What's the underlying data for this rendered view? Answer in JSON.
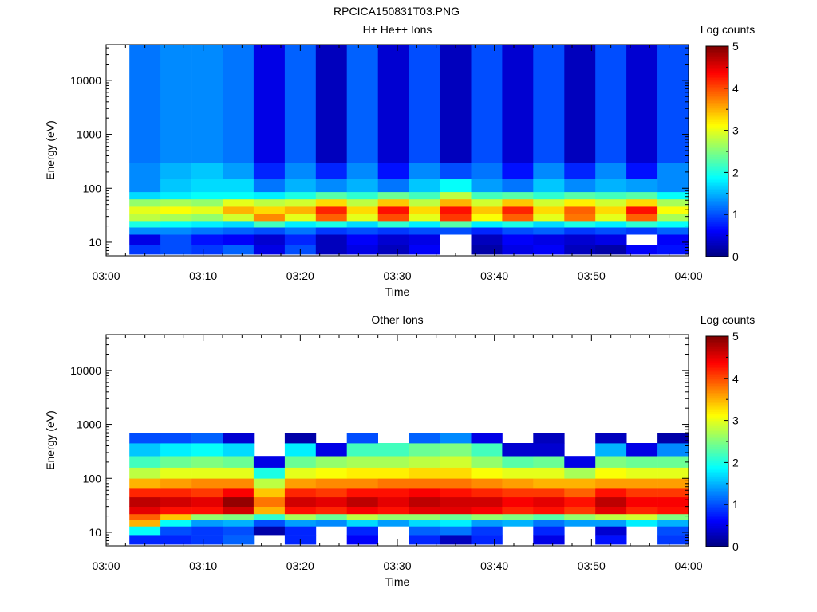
{
  "page_title": "RPCICA150831T03.PNG",
  "colors": {
    "white_gap": "#ffffff",
    "axis": "#000000"
  },
  "chart_data": [
    {
      "type": "heatmap",
      "title": "H+ He++ Ions",
      "xlabel": "Time",
      "ylabel": "Energy (eV)",
      "y_scale": "log",
      "x_ticks": [
        "03:00",
        "03:10",
        "03:20",
        "03:30",
        "03:40",
        "03:50",
        "04:00"
      ],
      "xlim_minutes": [
        0,
        60
      ],
      "y_ticks": [
        10,
        100,
        1000,
        10000
      ],
      "ylim": [
        5.6,
        46000
      ],
      "colorbar": {
        "label": "Log counts",
        "ticks": [
          0,
          1,
          2,
          3,
          4,
          5
        ],
        "range": [
          0,
          5
        ]
      },
      "grid": false,
      "time_bins_minutes": [
        2.4,
        5.6,
        8.8,
        12.0,
        15.2,
        18.4,
        21.6,
        24.8,
        28.0,
        31.2,
        34.4,
        37.6,
        40.8,
        44.0,
        47.2,
        50.4,
        53.6,
        56.8,
        60.0
      ],
      "energy_bands": [
        {
          "emin": 6,
          "emax": 9,
          "values": [
            0.9,
            1.0,
            0.9,
            1.1,
            0.5,
            1.0,
            0.3,
            0.5,
            0.3,
            0.6,
            null,
            0.2,
            0.5,
            0.6,
            0.3,
            0.2,
            0.6,
            0.7
          ]
        },
        {
          "emin": 9,
          "emax": 14,
          "values": [
            0.5,
            1.0,
            0.7,
            0.6,
            0.4,
            0.8,
            0.3,
            0.6,
            0.4,
            0.5,
            null,
            0.3,
            0.6,
            0.5,
            0.4,
            0.5,
            null,
            0.6
          ]
        },
        {
          "emin": 14,
          "emax": 19,
          "values": [
            1.3,
            1.3,
            1.2,
            1.1,
            1.0,
            1.2,
            0.9,
            1.0,
            0.9,
            1.0,
            1.0,
            0.8,
            1.0,
            1.1,
            0.9,
            1.0,
            0.9,
            1.1
          ]
        },
        {
          "emin": 19,
          "emax": 25,
          "values": [
            2.0,
            1.9,
            1.8,
            1.7,
            2.2,
            1.8,
            2.0,
            1.7,
            2.1,
            1.8,
            2.3,
            1.8,
            2.0,
            1.7,
            2.0,
            1.8,
            2.1,
            1.9
          ]
        },
        {
          "emin": 25,
          "emax": 34,
          "values": [
            2.8,
            2.7,
            2.6,
            2.9,
            3.7,
            3.0,
            3.9,
            3.0,
            4.0,
            3.0,
            4.1,
            3.1,
            3.9,
            3.0,
            3.8,
            3.0,
            3.9,
            2.7
          ]
        },
        {
          "emin": 34,
          "emax": 46,
          "values": [
            3.0,
            3.1,
            3.0,
            3.5,
            3.3,
            3.5,
            4.2,
            3.3,
            4.3,
            3.3,
            4.3,
            3.4,
            4.2,
            3.3,
            3.9,
            3.3,
            4.3,
            3.1
          ]
        },
        {
          "emin": 46,
          "emax": 63,
          "values": [
            2.6,
            2.7,
            2.6,
            3.0,
            2.8,
            2.9,
            3.3,
            2.8,
            3.4,
            2.8,
            3.5,
            2.9,
            3.4,
            2.9,
            3.2,
            2.9,
            3.3,
            2.7
          ]
        },
        {
          "emin": 63,
          "emax": 86,
          "values": [
            1.7,
            1.8,
            1.9,
            1.9,
            1.8,
            2.0,
            2.3,
            2.1,
            2.4,
            2.2,
            2.8,
            2.2,
            2.3,
            2.1,
            2.3,
            2.2,
            2.3,
            1.9
          ]
        },
        {
          "emin": 86,
          "emax": 150,
          "values": [
            1.3,
            1.6,
            1.7,
            1.7,
            1.2,
            1.5,
            1.3,
            1.5,
            1.2,
            1.6,
            1.9,
            1.4,
            1.2,
            1.6,
            1.3,
            1.5,
            1.4,
            1.3
          ]
        },
        {
          "emin": 150,
          "emax": 300,
          "values": [
            1.3,
            1.5,
            1.6,
            1.4,
            0.8,
            1.3,
            0.8,
            1.3,
            0.7,
            1.3,
            1.0,
            1.2,
            0.7,
            1.3,
            0.8,
            1.3,
            0.7,
            1.3
          ]
        },
        {
          "emin": 300,
          "emax": 46000,
          "values": [
            1.2,
            1.3,
            1.3,
            1.2,
            0.5,
            1.1,
            0.3,
            1.1,
            0.4,
            1.0,
            0.3,
            1.0,
            0.4,
            1.0,
            0.3,
            1.0,
            0.4,
            1.0
          ]
        }
      ]
    },
    {
      "type": "heatmap",
      "title": "Other Ions",
      "xlabel": "Time",
      "ylabel": "Energy (eV)",
      "y_scale": "log",
      "x_ticks": [
        "03:00",
        "03:10",
        "03:20",
        "03:30",
        "03:40",
        "03:50",
        "04:00"
      ],
      "xlim_minutes": [
        0,
        60
      ],
      "y_ticks": [
        10,
        100,
        1000,
        10000
      ],
      "ylim": [
        5.6,
        46000
      ],
      "colorbar": {
        "label": "Log counts",
        "ticks": [
          0,
          1,
          2,
          3,
          4,
          5
        ],
        "range": [
          0,
          5
        ]
      },
      "grid": false,
      "time_bins_minutes": [
        2.4,
        5.6,
        8.8,
        12.0,
        15.2,
        18.4,
        21.6,
        24.8,
        28.0,
        31.2,
        34.4,
        37.6,
        40.8,
        44.0,
        47.2,
        50.4,
        53.6,
        56.8,
        60.0
      ],
      "energy_bands": [
        {
          "emin": 6,
          "emax": 9,
          "values": [
            0.8,
            0.8,
            0.9,
            1.1,
            null,
            0.8,
            null,
            0.6,
            null,
            0.8,
            0.3,
            0.8,
            null,
            0.5,
            null,
            0.7,
            null,
            0.9
          ]
        },
        {
          "emin": 9,
          "emax": 13,
          "values": [
            1.9,
            1.0,
            0.9,
            1.0,
            0.2,
            0.8,
            null,
            0.8,
            null,
            1.1,
            1.2,
            0.9,
            null,
            0.8,
            null,
            0.4,
            null,
            1.0
          ]
        },
        {
          "emin": 13,
          "emax": 17,
          "values": [
            3.5,
            1.9,
            1.4,
            1.5,
            1.0,
            1.4,
            1.3,
            1.7,
            1.4,
            1.7,
            1.8,
            1.4,
            1.5,
            1.2,
            1.4,
            1.4,
            1.8,
            1.5
          ]
        },
        {
          "emin": 17,
          "emax": 22,
          "values": [
            3.9,
            3.4,
            2.6,
            2.5,
            2.1,
            2.7,
            2.4,
            2.8,
            2.6,
            2.6,
            2.4,
            2.6,
            2.5,
            2.3,
            2.6,
            2.8,
            2.9,
            2.5
          ]
        },
        {
          "emin": 22,
          "emax": 30,
          "values": [
            4.5,
            4.3,
            4.3,
            4.6,
            3.5,
            4.3,
            4.2,
            4.4,
            4.3,
            4.5,
            4.5,
            4.4,
            4.2,
            4.3,
            4.1,
            4.5,
            4.2,
            4.3
          ]
        },
        {
          "emin": 30,
          "emax": 45,
          "values": [
            4.7,
            4.6,
            4.5,
            4.9,
            3.8,
            4.6,
            4.5,
            4.7,
            4.5,
            4.7,
            4.6,
            4.6,
            4.4,
            4.5,
            4.3,
            4.7,
            4.4,
            4.4
          ]
        },
        {
          "emin": 45,
          "emax": 65,
          "values": [
            4.2,
            4.2,
            4.1,
            4.4,
            3.4,
            4.2,
            4.1,
            4.3,
            4.3,
            4.4,
            4.3,
            4.2,
            4.1,
            4.1,
            3.9,
            4.3,
            4.1,
            4.1
          ]
        },
        {
          "emin": 65,
          "emax": 100,
          "values": [
            3.5,
            3.6,
            3.7,
            3.7,
            2.8,
            3.6,
            3.7,
            3.7,
            3.8,
            3.8,
            3.8,
            3.7,
            3.6,
            3.5,
            3.5,
            3.6,
            3.6,
            3.6
          ]
        },
        {
          "emin": 100,
          "emax": 160,
          "values": [
            2.8,
            3.0,
            3.0,
            3.0,
            2.0,
            3.0,
            3.1,
            3.2,
            3.2,
            3.3,
            3.3,
            3.1,
            3.0,
            3.0,
            2.7,
            3.1,
            3.0,
            3.0
          ]
        },
        {
          "emin": 160,
          "emax": 260,
          "values": [
            2.2,
            2.4,
            2.5,
            2.4,
            0.5,
            2.4,
            2.6,
            2.7,
            2.7,
            2.8,
            2.9,
            2.6,
            2.3,
            2.4,
            0.5,
            2.5,
            2.4,
            2.4
          ]
        },
        {
          "emin": 260,
          "emax": 450,
          "values": [
            1.6,
            1.8,
            1.9,
            1.7,
            null,
            1.8,
            0.5,
            2.2,
            2.2,
            2.4,
            2.5,
            2.2,
            0.4,
            0.4,
            null,
            1.5,
            0.5,
            1.3
          ]
        },
        {
          "emin": 450,
          "emax": 700,
          "values": [
            1.0,
            1.0,
            1.1,
            0.4,
            null,
            0.2,
            null,
            1.0,
            null,
            1.1,
            1.3,
            0.5,
            null,
            0.3,
            null,
            0.3,
            null,
            0.2
          ]
        }
      ]
    }
  ]
}
